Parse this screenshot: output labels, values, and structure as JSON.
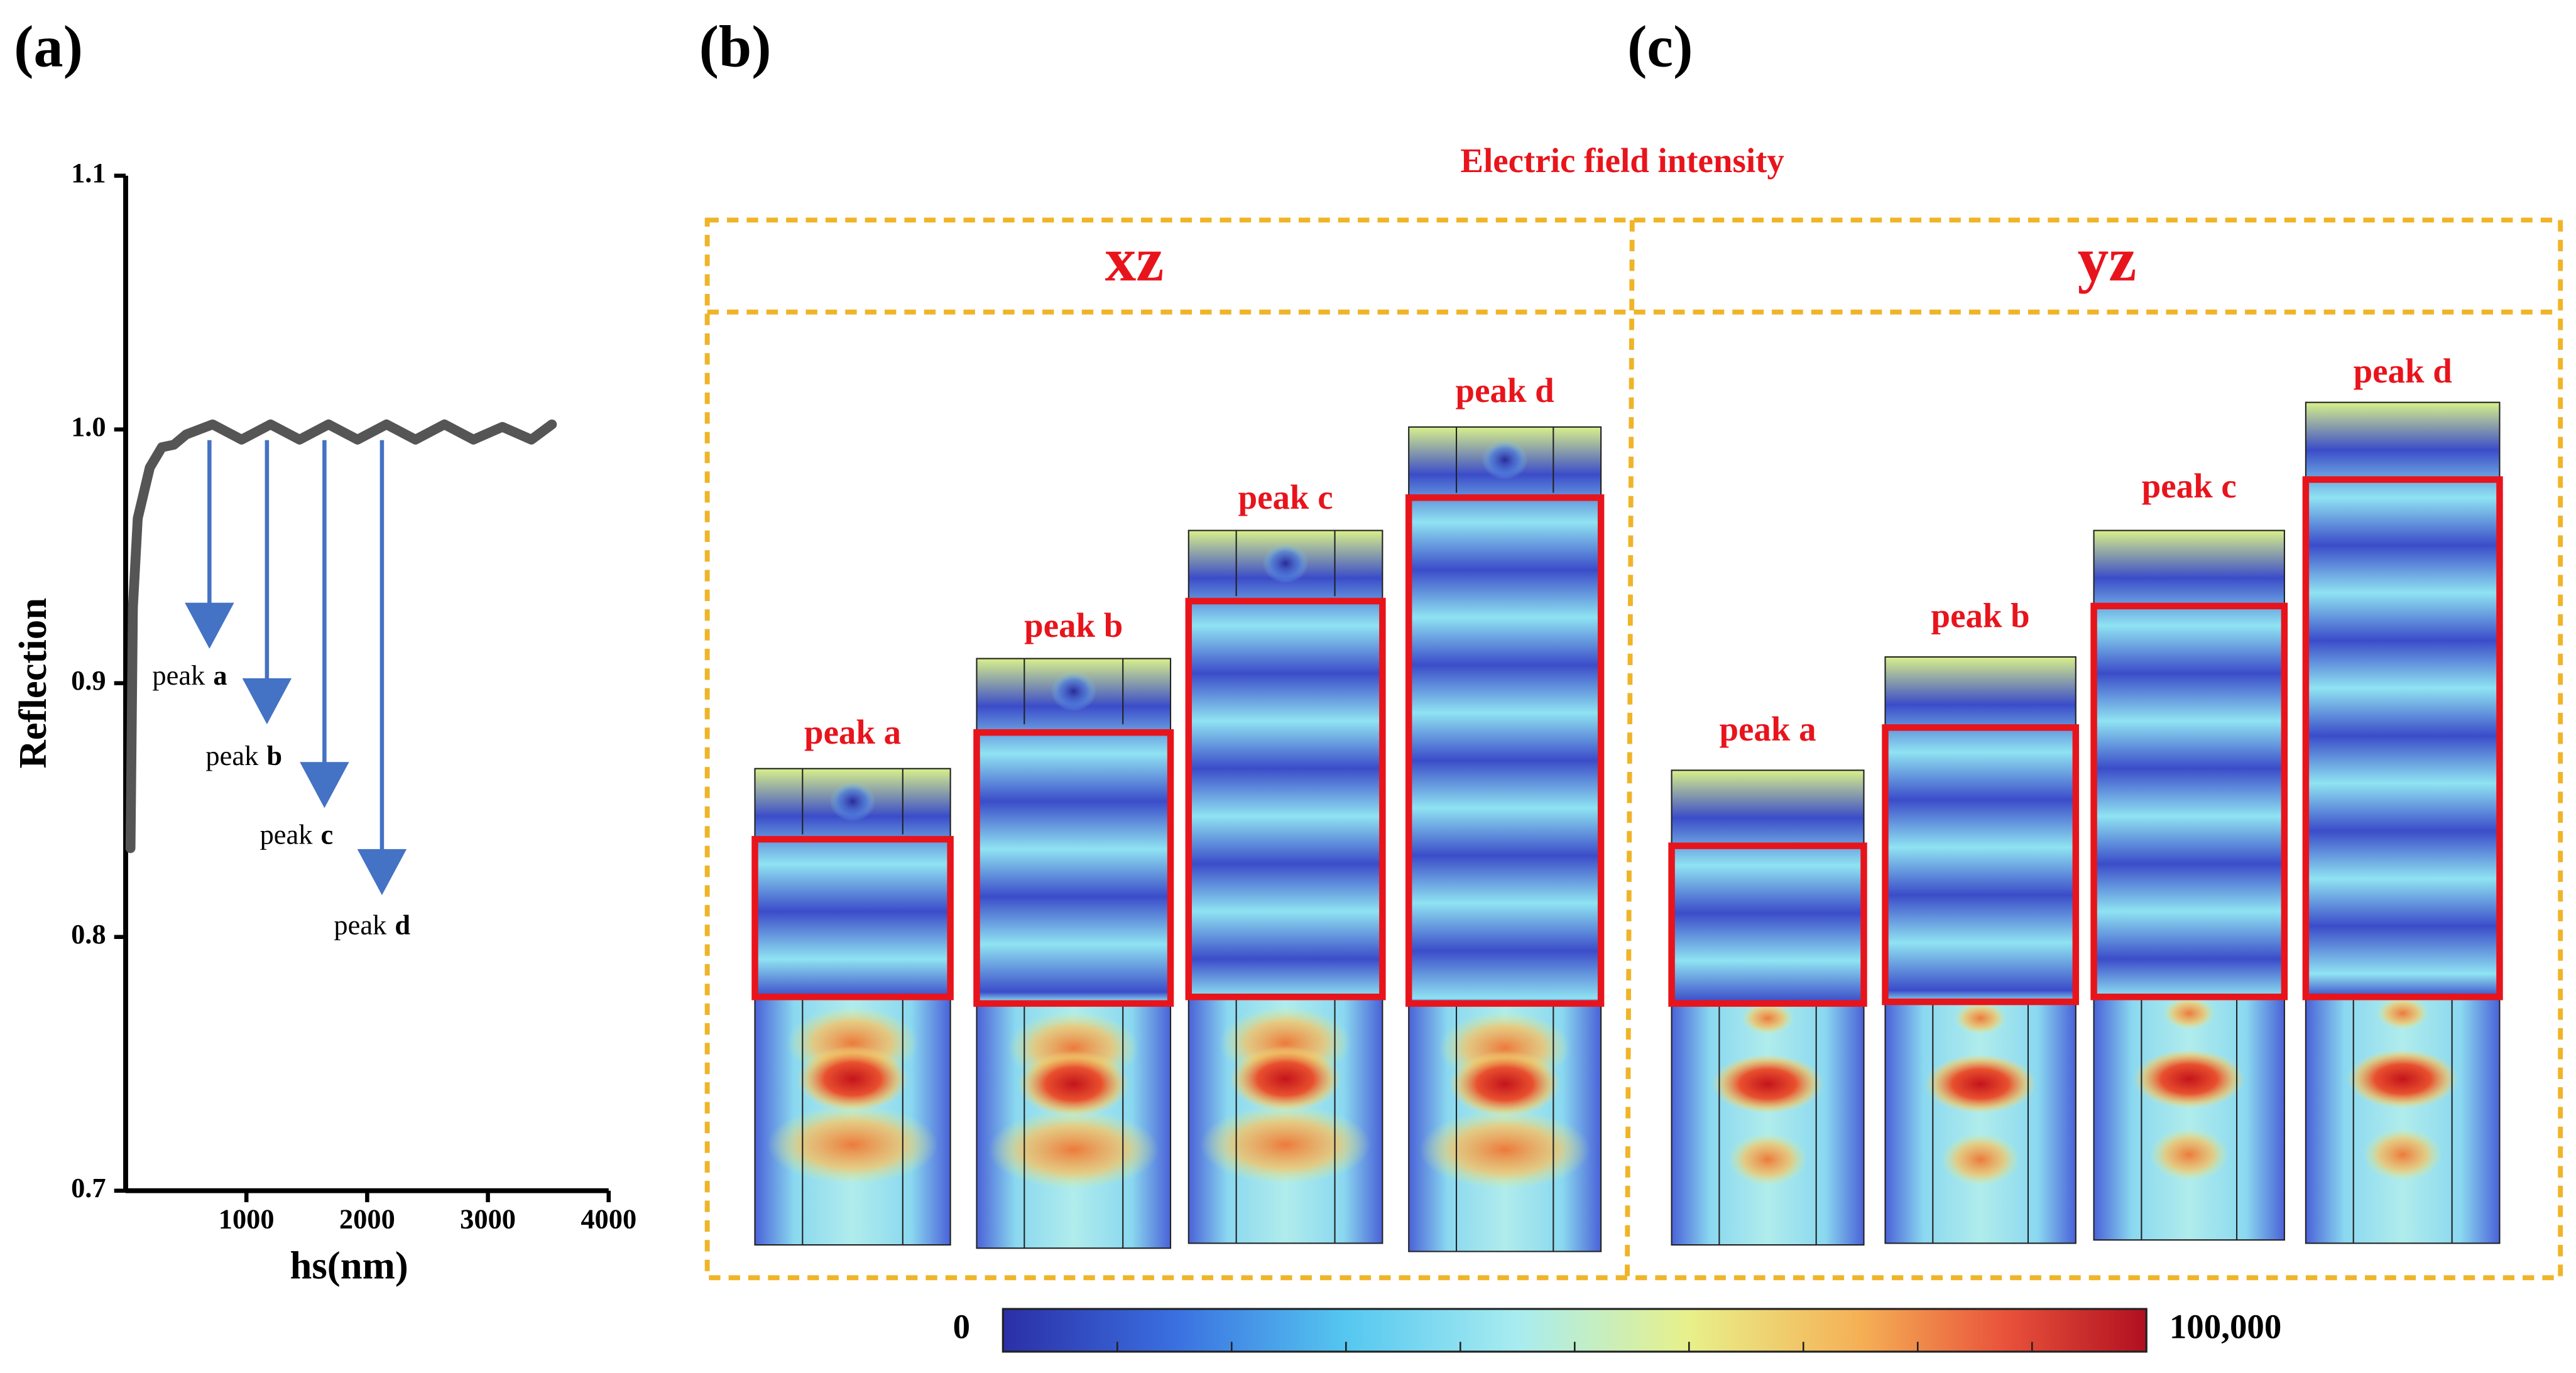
{
  "panel_labels": [
    "(a)",
    "(b)",
    "(c)"
  ],
  "chart_data": {
    "type": "line",
    "xlabel": "hs(nm)",
    "ylabel": "Reflection",
    "x": [
      40,
      60,
      100,
      200,
      300,
      400,
      500,
      720,
      960,
      1200,
      1440,
      1680,
      1920,
      2160,
      2400,
      2640,
      2880,
      3120,
      3360,
      3530
    ],
    "series": [
      {
        "color": "#555555",
        "values": [
          0.835,
          0.93,
          0.965,
          0.985,
          0.993,
          0.994,
          0.998,
          1.002,
          0.996,
          1.002,
          0.996,
          1.002,
          0.996,
          1.002,
          0.996,
          1.002,
          0.996,
          1.001,
          0.996,
          1.002
        ]
      }
    ],
    "xlim": [
      0,
      4000
    ],
    "xticks": [
      1000,
      2000,
      3000,
      4000
    ],
    "ylim": [
      0.7,
      1.1
    ],
    "yticks": [
      0.7,
      0.8,
      0.9,
      {
        "value": 1,
        "label": "1.0"
      },
      1.1
    ],
    "annotations": [
      {
        "text": "peak",
        "letter": "a"
      },
      {
        "text": "peak",
        "letter": "b"
      },
      {
        "text": "peak",
        "letter": "c"
      },
      {
        "text": "peak",
        "letter": "d"
      }
    ],
    "annotation_color": "#4472c4"
  },
  "field_maps": {
    "title": "Electric field intensity",
    "groups": [
      {
        "label": "xz",
        "peaks": [
          "peak a",
          "peak b",
          "peak c",
          "peak d"
        ]
      },
      {
        "label": "yz",
        "peaks": [
          "peak a",
          "peak b",
          "peak c",
          "peak d"
        ]
      }
    ],
    "colorbar": {
      "lim": [
        0,
        100000
      ],
      "ticks": [
        0,
        {
          "value": 100000,
          "label": "100,000"
        }
      ]
    }
  }
}
